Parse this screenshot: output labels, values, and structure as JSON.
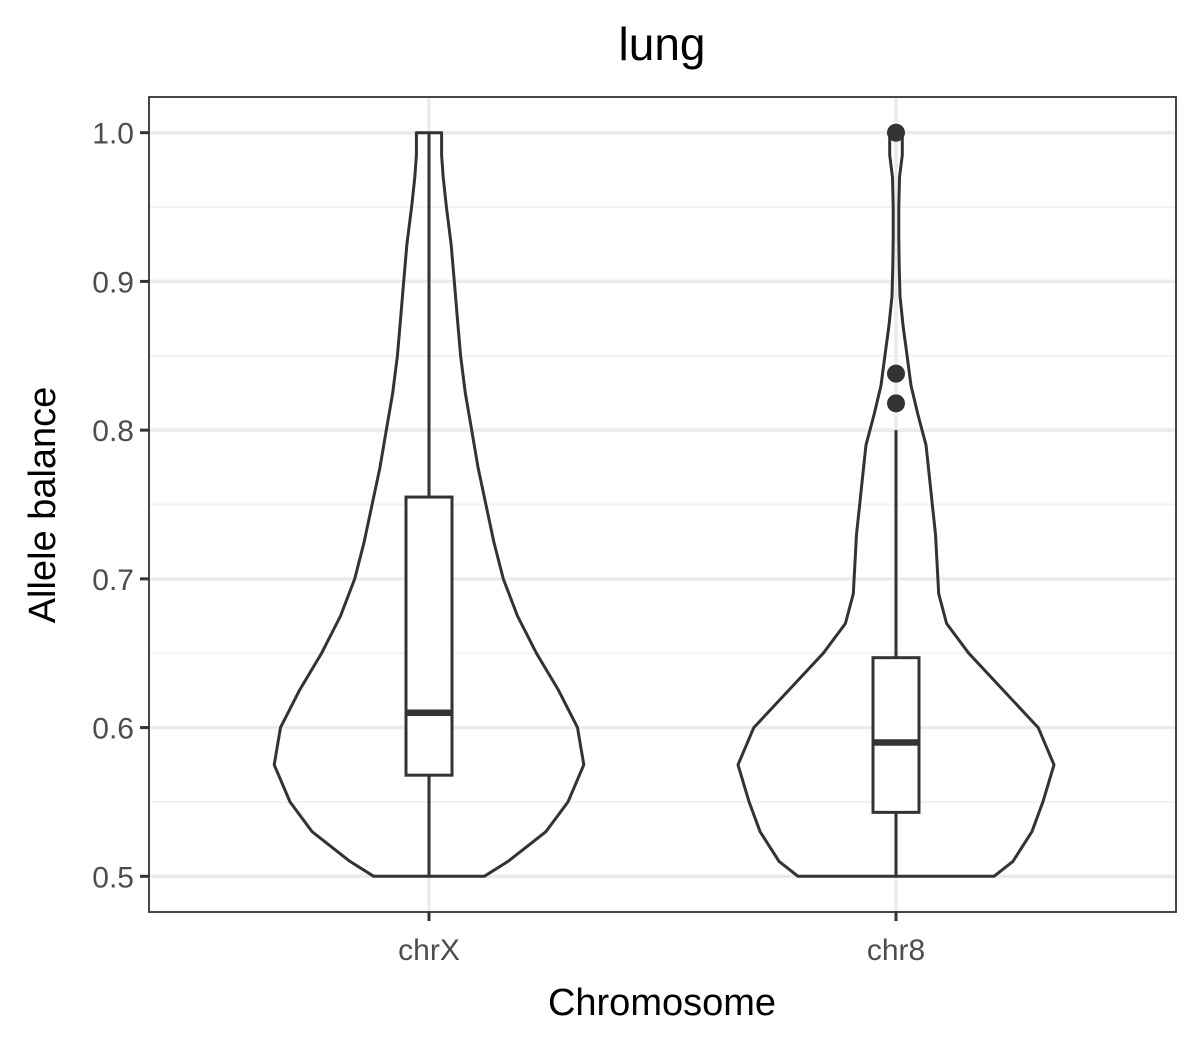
{
  "chart_data": {
    "type": "violin",
    "title": "lung",
    "xlabel": "Chromosome",
    "ylabel": "Allele balance",
    "ylim": [
      0.476,
      1.024
    ],
    "yticks": [
      {
        "value": 0.5,
        "label": "0.5"
      },
      {
        "value": 0.6,
        "label": "0.6"
      },
      {
        "value": 0.7,
        "label": "0.7"
      },
      {
        "value": 0.8,
        "label": "0.8"
      },
      {
        "value": 0.9,
        "label": "0.9"
      },
      {
        "value": 1.0,
        "label": "1.0"
      }
    ],
    "yminor": [
      0.55,
      0.65,
      0.75,
      0.85,
      0.95
    ],
    "grid": true,
    "categories": [
      "chrX",
      "chr8"
    ],
    "series": [
      {
        "category": "chrX",
        "box": {
          "lower_whisker": 0.5,
          "q1": 0.568,
          "median": 0.61,
          "q3": 0.755,
          "upper_whisker": 1.0
        },
        "outliers": [],
        "density": [
          [
            0.5,
            0.35
          ],
          [
            0.51,
            0.5
          ],
          [
            0.53,
            0.74
          ],
          [
            0.55,
            0.88
          ],
          [
            0.575,
            0.98
          ],
          [
            0.6,
            0.94
          ],
          [
            0.625,
            0.82
          ],
          [
            0.65,
            0.68
          ],
          [
            0.675,
            0.56
          ],
          [
            0.7,
            0.47
          ],
          [
            0.725,
            0.41
          ],
          [
            0.75,
            0.36
          ],
          [
            0.775,
            0.31
          ],
          [
            0.8,
            0.27
          ],
          [
            0.825,
            0.23
          ],
          [
            0.85,
            0.2
          ],
          [
            0.875,
            0.18
          ],
          [
            0.9,
            0.16
          ],
          [
            0.925,
            0.14
          ],
          [
            0.95,
            0.11
          ],
          [
            0.97,
            0.09
          ],
          [
            0.985,
            0.08
          ],
          [
            1.0,
            0.08
          ]
        ]
      },
      {
        "category": "chr8",
        "box": {
          "lower_whisker": 0.5,
          "q1": 0.543,
          "median": 0.59,
          "q3": 0.647,
          "upper_whisker": 0.8
        },
        "outliers": [
          0.818,
          0.838,
          1.0
        ],
        "density": [
          [
            0.5,
            0.62
          ],
          [
            0.51,
            0.74
          ],
          [
            0.53,
            0.86
          ],
          [
            0.55,
            0.93
          ],
          [
            0.575,
            1.0
          ],
          [
            0.6,
            0.9
          ],
          [
            0.625,
            0.68
          ],
          [
            0.65,
            0.46
          ],
          [
            0.67,
            0.32
          ],
          [
            0.69,
            0.27
          ],
          [
            0.71,
            0.26
          ],
          [
            0.73,
            0.25
          ],
          [
            0.75,
            0.23
          ],
          [
            0.77,
            0.21
          ],
          [
            0.79,
            0.19
          ],
          [
            0.81,
            0.14
          ],
          [
            0.83,
            0.095
          ],
          [
            0.85,
            0.07
          ],
          [
            0.87,
            0.045
          ],
          [
            0.89,
            0.025
          ],
          [
            0.91,
            0.02
          ],
          [
            0.93,
            0.018
          ],
          [
            0.95,
            0.018
          ],
          [
            0.97,
            0.022
          ],
          [
            0.985,
            0.04
          ],
          [
            1.0,
            0.04
          ]
        ]
      }
    ]
  }
}
